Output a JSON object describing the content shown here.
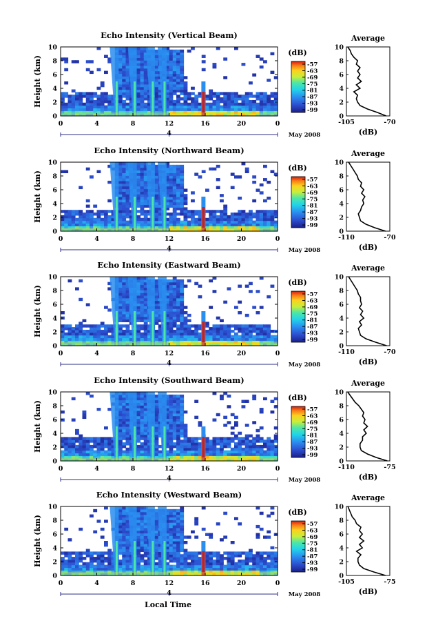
{
  "bottom_label": "Local Time",
  "chart_data": [
    {
      "type": "heatmap",
      "title": "Echo Intensity (Vertical Beam)",
      "ylabel": "Height (km)",
      "x_ticks": [
        "0",
        "4",
        "8",
        "12",
        "16",
        "20",
        "0"
      ],
      "y_ticks": [
        "0",
        "2",
        "4",
        "6",
        "8",
        "10"
      ],
      "xlim": [
        0,
        24
      ],
      "ylim": [
        0,
        10
      ],
      "date_marker": "4",
      "date_label": "May 2008",
      "colorbar": {
        "unit": "(dB)",
        "ticks": [
          "-57",
          "-63",
          "-69",
          "-75",
          "-81",
          "-87",
          "-93",
          "-99"
        ],
        "range": [
          -99,
          -57
        ]
      },
      "bands": [
        6.2,
        8.2,
        10.2,
        11.5
      ],
      "spike": 15.8,
      "low_layer_top": 3.5,
      "profile": {
        "title": "Average",
        "xlabel": "(dB)",
        "xticks": [
          "-105",
          "-70"
        ],
        "xlim": [
          -105,
          -70
        ],
        "y_ticks": [
          "0",
          "2",
          "4",
          "6",
          "8",
          "10"
        ],
        "heights": [
          0,
          0.5,
          1,
          1.5,
          2,
          2.5,
          3,
          3.5,
          4,
          4.5,
          5,
          5.5,
          6,
          6.5,
          7,
          7.5,
          8,
          8.5,
          9,
          9.5,
          10
        ],
        "values": [
          -73,
          -80,
          -88,
          -94,
          -96,
          -97,
          -96,
          -99,
          -94,
          -97,
          -93,
          -96,
          -94,
          -96,
          -94,
          -97,
          -96,
          -99,
          -101,
          -102,
          -104
        ]
      }
    },
    {
      "type": "heatmap",
      "title": "Echo Intensity (Northward Beam)",
      "ylabel": "Height (km)",
      "x_ticks": [
        "0",
        "4",
        "8",
        "12",
        "16",
        "20",
        "0"
      ],
      "y_ticks": [
        "0",
        "2",
        "4",
        "6",
        "8",
        "10"
      ],
      "xlim": [
        0,
        24
      ],
      "ylim": [
        0,
        10
      ],
      "date_marker": "4",
      "date_label": "May 2008",
      "colorbar": {
        "unit": "(dB)",
        "ticks": [
          "-57",
          "-63",
          "-69",
          "-75",
          "-81",
          "-87",
          "-93",
          "-99"
        ],
        "range": [
          -99,
          -57
        ]
      },
      "bands": [
        6.2,
        8.2,
        10.2,
        11.5
      ],
      "spike": 15.8,
      "low_layer_top": 3.2,
      "profile": {
        "title": "Average",
        "xlabel": "(dB)",
        "xticks": [
          "-110",
          "-70"
        ],
        "xlim": [
          -110,
          -70
        ],
        "y_ticks": [
          "0",
          "2",
          "4",
          "6",
          "8",
          "10"
        ],
        "heights": [
          0,
          0.5,
          1,
          1.5,
          2,
          2.5,
          3,
          3.5,
          4,
          4.5,
          5,
          5.5,
          6,
          6.5,
          7,
          7.5,
          8,
          8.5,
          9,
          9.5,
          10
        ],
        "values": [
          -74,
          -84,
          -92,
          -97,
          -98,
          -99,
          -97,
          -96,
          -94,
          -95,
          -93,
          -96,
          -94,
          -97,
          -96,
          -99,
          -100,
          -102,
          -104,
          -106,
          -108
        ]
      }
    },
    {
      "type": "heatmap",
      "title": "Echo Intensity (Eastward Beam)",
      "ylabel": "Height (km)",
      "x_ticks": [
        "0",
        "4",
        "8",
        "12",
        "16",
        "20",
        "0"
      ],
      "y_ticks": [
        "0",
        "2",
        "4",
        "6",
        "8",
        "10"
      ],
      "xlim": [
        0,
        24
      ],
      "ylim": [
        0,
        10
      ],
      "date_marker": "4",
      "date_label": "May 2008",
      "colorbar": {
        "unit": "(dB)",
        "ticks": [
          "-57",
          "-63",
          "-69",
          "-75",
          "-81",
          "-87",
          "-93",
          "-99"
        ],
        "range": [
          -99,
          -57
        ]
      },
      "bands": [
        6.2,
        8.2,
        10.2,
        11.5
      ],
      "spike": 15.8,
      "low_layer_top": 3.2,
      "profile": {
        "title": "Average",
        "xlabel": "(dB)",
        "xticks": [
          "-110",
          "-70"
        ],
        "xlim": [
          -110,
          -70
        ],
        "y_ticks": [
          "0",
          "2",
          "4",
          "6",
          "8",
          "10"
        ],
        "heights": [
          0,
          0.5,
          1,
          1.5,
          2,
          2.5,
          3,
          3.5,
          4,
          4.5,
          5,
          5.5,
          6,
          6.5,
          7,
          7.5,
          8,
          8.5,
          9,
          9.5,
          10
        ],
        "values": [
          -73,
          -83,
          -92,
          -97,
          -98,
          -99,
          -96,
          -98,
          -94,
          -97,
          -95,
          -98,
          -96,
          -97,
          -97,
          -99,
          -100,
          -102,
          -104,
          -106,
          -108
        ]
      }
    },
    {
      "type": "heatmap",
      "title": "Echo Intensity (Southward Beam)",
      "ylabel": "Height (km)",
      "x_ticks": [
        "0",
        "4",
        "8",
        "12",
        "16",
        "20",
        "0"
      ],
      "y_ticks": [
        "0",
        "2",
        "4",
        "6",
        "8",
        "10"
      ],
      "xlim": [
        0,
        24
      ],
      "ylim": [
        0,
        10
      ],
      "date_marker": "4",
      "date_label": "May 2008",
      "colorbar": {
        "unit": "(dB)",
        "ticks": [
          "-57",
          "-63",
          "-69",
          "-75",
          "-81",
          "-87",
          "-93",
          "-99"
        ],
        "range": [
          -99,
          -57
        ]
      },
      "bands": [
        6.2,
        8.2,
        10.2,
        11.5
      ],
      "spike": 15.8,
      "low_layer_top": 3.5,
      "profile": {
        "title": "Average",
        "xlabel": "(dB)",
        "xticks": [
          "-110",
          "-75"
        ],
        "xlim": [
          -110,
          -75
        ],
        "y_ticks": [
          "0",
          "2",
          "4",
          "6",
          "8",
          "10"
        ],
        "heights": [
          0,
          0.5,
          1,
          1.5,
          2,
          2.5,
          3,
          3.5,
          4,
          4.5,
          5,
          5.5,
          6,
          6.5,
          7,
          7.5,
          8,
          8.5,
          9,
          9.5,
          10
        ],
        "values": [
          -77,
          -86,
          -93,
          -98,
          -99,
          -99,
          -97,
          -97,
          -94,
          -96,
          -93,
          -96,
          -95,
          -97,
          -96,
          -98,
          -100,
          -103,
          -105,
          -107,
          -109
        ]
      }
    },
    {
      "type": "heatmap",
      "title": "Echo Intensity (Westward Beam)",
      "ylabel": "Height (km)",
      "x_ticks": [
        "0",
        "4",
        "8",
        "12",
        "16",
        "20",
        "0"
      ],
      "y_ticks": [
        "0",
        "2",
        "4",
        "6",
        "8",
        "10"
      ],
      "xlim": [
        0,
        24
      ],
      "ylim": [
        0,
        10
      ],
      "date_marker": "4",
      "date_label": "May 2008",
      "colorbar": {
        "unit": "(dB)",
        "ticks": [
          "-57",
          "-63",
          "-69",
          "-75",
          "-81",
          "-87",
          "-93",
          "-99"
        ],
        "range": [
          -99,
          -57
        ]
      },
      "bands": [
        6.2,
        8.2,
        10.2,
        11.5
      ],
      "spike": 15.8,
      "low_layer_top": 3.5,
      "profile": {
        "title": "Average",
        "xlabel": "(dB)",
        "xticks": [
          "-105",
          "-75"
        ],
        "xlim": [
          -105,
          -75
        ],
        "y_ticks": [
          "0",
          "2",
          "4",
          "6",
          "8",
          "10"
        ],
        "heights": [
          0,
          0.5,
          1,
          1.5,
          2,
          2.5,
          3,
          3.5,
          4,
          4.5,
          5,
          5.5,
          6,
          6.5,
          7,
          7.5,
          8,
          8.5,
          9,
          9.5,
          10
        ],
        "values": [
          -78,
          -86,
          -93,
          -96,
          -97,
          -97,
          -95,
          -98,
          -94,
          -96,
          -93,
          -96,
          -94,
          -96,
          -95,
          -98,
          -99,
          -101,
          -102,
          -103,
          -104
        ]
      }
    }
  ]
}
